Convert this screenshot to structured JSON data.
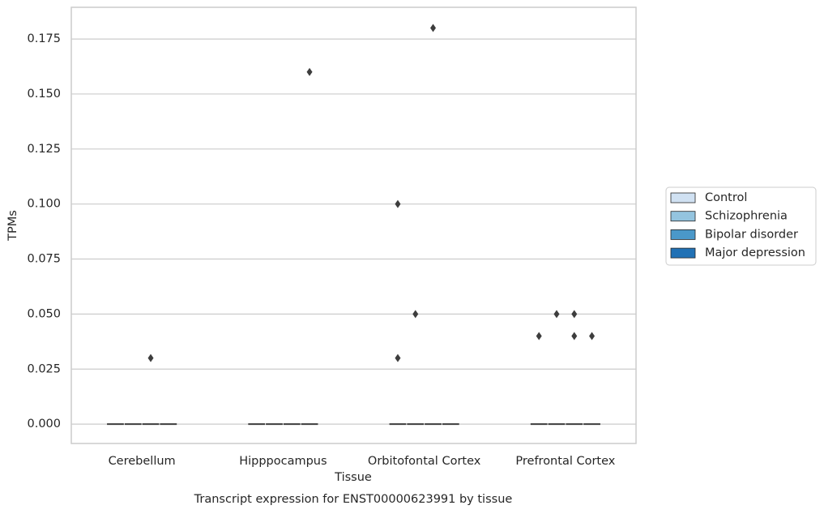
{
  "chart_data": {
    "type": "box",
    "title": "Transcript expression for ENST00000623991 by tissue",
    "x_label": "Tissue",
    "y_label": "TPMs",
    "categories": [
      "Cerebellum",
      "Hipppocampus",
      "Orbitofontal Cortex",
      "Prefrontal Cortex"
    ],
    "series": [
      {
        "name": "Control",
        "color": "#d0e1f2",
        "values": [
          0,
          0,
          0,
          0
        ],
        "outliers": [
          [],
          [],
          [
            0.1,
            0.03
          ],
          [
            0.04
          ]
        ]
      },
      {
        "name": "Schizophrenia",
        "color": "#94c4df",
        "values": [
          0,
          0,
          0,
          0
        ],
        "outliers": [
          [],
          [],
          [
            0.05
          ],
          [
            0.05
          ]
        ]
      },
      {
        "name": "Bipolar disorder",
        "color": "#4a98c9",
        "values": [
          0,
          0,
          0,
          0
        ],
        "outliers": [
          [
            0.03
          ],
          [],
          [
            0.18
          ],
          [
            0.05,
            0.04
          ]
        ]
      },
      {
        "name": "Major depression",
        "color": "#2171b5",
        "values": [
          0,
          0,
          0,
          0
        ],
        "outliers": [
          [],
          [
            0.16
          ],
          [],
          [
            0.04
          ]
        ]
      }
    ],
    "ylim": [
      -0.0088,
      0.1894
    ],
    "yticks": [
      {
        "value": 0,
        "label": "0.000"
      },
      {
        "value": 0.025,
        "label": "0.025"
      },
      {
        "value": 0.05,
        "label": "0.050"
      },
      {
        "value": 0.075,
        "label": "0.075"
      },
      {
        "value": 0.1,
        "label": "0.100"
      },
      {
        "value": 0.125,
        "label": "0.125"
      },
      {
        "value": 0.15,
        "label": "0.150"
      },
      {
        "value": 0.175,
        "label": "0.175"
      }
    ],
    "grid": true,
    "legend_position": "right"
  }
}
